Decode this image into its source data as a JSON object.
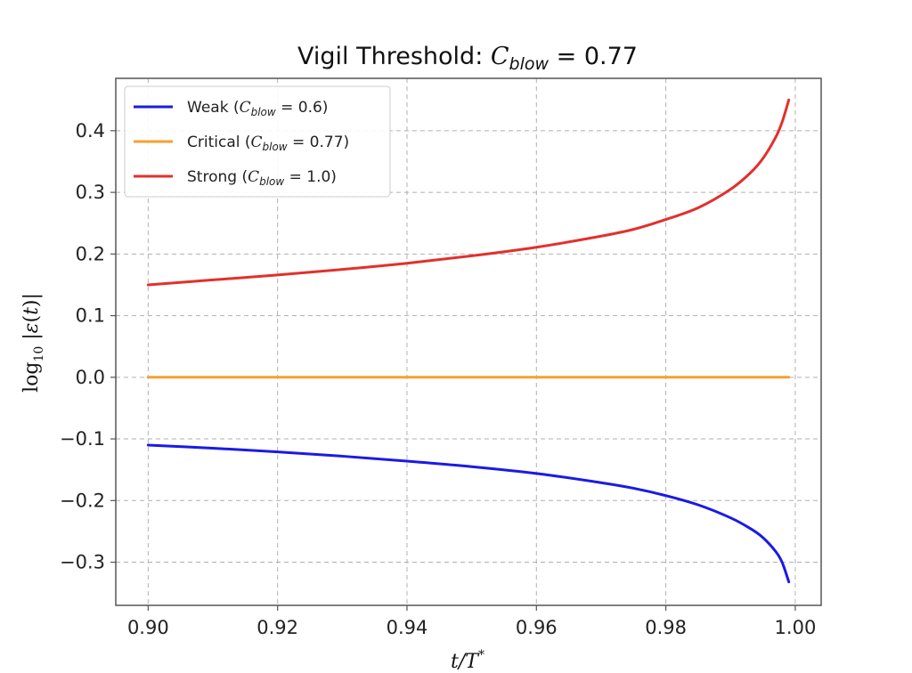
{
  "chart_data": {
    "type": "line",
    "title_main": "Vigil Threshold: ",
    "title_var": "C",
    "title_sub": "blow",
    "title_value": " = 0.77",
    "xlabel": "t/T*",
    "ylabel": "log₁₀|ε(t)|",
    "xlim": [
      0.895,
      1.004
    ],
    "ylim": [
      -0.37,
      0.485
    ],
    "xticks": [
      0.9,
      0.92,
      0.94,
      0.96,
      0.98,
      1.0
    ],
    "xtick_labels": [
      "0.90",
      "0.92",
      "0.94",
      "0.96",
      "0.98",
      "1.00"
    ],
    "yticks": [
      -0.3,
      -0.2,
      -0.1,
      0.0,
      0.1,
      0.2,
      0.3,
      0.4
    ],
    "ytick_labels": [
      "−0.3",
      "−0.2",
      "−0.1",
      "0.0",
      "0.1",
      "0.2",
      "0.3",
      "0.4"
    ],
    "grid": true,
    "legend_position": "top-left",
    "series": [
      {
        "name": "Weak",
        "legend_prefix": "Weak (",
        "legend_var": "C",
        "legend_sub": "blow",
        "legend_suffix": " = 0.6)",
        "color": "#1a1ae6",
        "x": [
          0.9,
          0.91,
          0.92,
          0.93,
          0.94,
          0.95,
          0.96,
          0.97,
          0.975,
          0.98,
          0.985,
          0.99,
          0.993,
          0.995,
          0.997,
          0.998,
          0.999
        ],
        "y": [
          -0.11,
          -0.115,
          -0.121,
          -0.128,
          -0.136,
          -0.145,
          -0.156,
          -0.171,
          -0.18,
          -0.192,
          -0.207,
          -0.228,
          -0.245,
          -0.26,
          -0.283,
          -0.301,
          -0.332
        ]
      },
      {
        "name": "Critical",
        "legend_prefix": "Critical (",
        "legend_var": "C",
        "legend_sub": "blow",
        "legend_suffix": " = 0.77)",
        "color": "#f5a030",
        "x": [
          0.9,
          0.999
        ],
        "y": [
          0.0,
          0.0
        ]
      },
      {
        "name": "Strong",
        "legend_prefix": "Strong (",
        "legend_var": "C",
        "legend_sub": "blow",
        "legend_suffix": " = 1.0)",
        "color": "#e3302b",
        "x": [
          0.9,
          0.91,
          0.92,
          0.93,
          0.94,
          0.95,
          0.96,
          0.97,
          0.975,
          0.98,
          0.985,
          0.99,
          0.993,
          0.995,
          0.997,
          0.998,
          0.999
        ],
        "y": [
          0.15,
          0.158,
          0.166,
          0.175,
          0.185,
          0.197,
          0.211,
          0.229,
          0.24,
          0.256,
          0.275,
          0.305,
          0.331,
          0.355,
          0.39,
          0.415,
          0.45
        ]
      }
    ]
  },
  "colors": {
    "axes_edge": "#555555",
    "grid": "#b0b0b0",
    "legend_edge": "#cccccc"
  }
}
